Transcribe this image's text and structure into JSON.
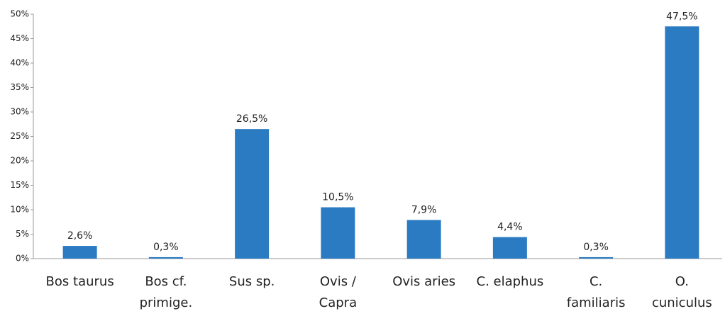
{
  "chart_data": {
    "type": "bar",
    "categories": [
      "Bos taurus",
      "Bos cf.\nprimige.",
      "Sus sp.",
      "Ovis /\nCapra",
      "Ovis aries",
      "C. elaphus",
      "C.\nfamiliaris",
      "O.\ncuniculus"
    ],
    "values": [
      2.6,
      0.3,
      26.5,
      10.5,
      7.9,
      4.4,
      0.3,
      47.5
    ],
    "value_labels": [
      "2,6%",
      "0,3%",
      "26,5%",
      "10,5%",
      "7,9%",
      "4,4%",
      "0,3%",
      "47,5%"
    ],
    "color": "#2b7bc2",
    "ylim": [
      0,
      50
    ],
    "yticks": [
      {
        "value": 0,
        "label": "0%"
      },
      {
        "value": 5,
        "label": "5%"
      },
      {
        "value": 10,
        "label": "10%"
      },
      {
        "value": 15,
        "label": "15%"
      },
      {
        "value": 20,
        "label": "20%"
      },
      {
        "value": 25,
        "label": "25%"
      },
      {
        "value": 30,
        "label": "30%"
      },
      {
        "value": 35,
        "label": "35%"
      },
      {
        "value": 40,
        "label": "40%"
      },
      {
        "value": 45,
        "label": "45%"
      },
      {
        "value": 50,
        "label": "50%"
      }
    ],
    "grid": false
  }
}
